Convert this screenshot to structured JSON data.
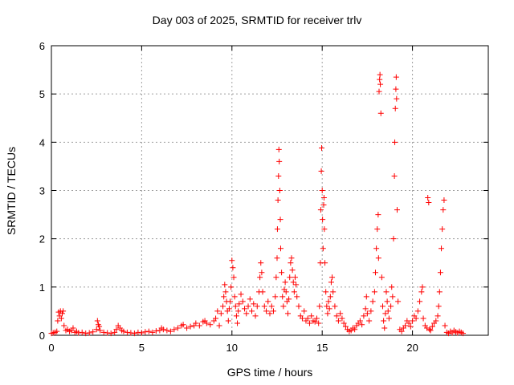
{
  "chart_data": {
    "type": "scatter",
    "title": "Day 003 of 2025, SRMTID for receiver trlv",
    "xlabel": "GPS time / hours",
    "ylabel": "SRMTID / TECUs",
    "xlim": [
      0,
      24.2
    ],
    "ylim": [
      0,
      6
    ],
    "xticks": [
      0,
      5,
      10,
      15,
      20
    ],
    "yticks": [
      0,
      1,
      2,
      3,
      4,
      5,
      6
    ],
    "grid": true,
    "marker": "+",
    "series": [
      {
        "name": "SRMTID",
        "color": "#ff0000",
        "points": [
          [
            0.0,
            0.04
          ],
          [
            0.1,
            0.05
          ],
          [
            0.2,
            0.06
          ],
          [
            0.3,
            0.08
          ],
          [
            0.35,
            0.3
          ],
          [
            0.4,
            0.48
          ],
          [
            0.45,
            0.4
          ],
          [
            0.5,
            0.5
          ],
          [
            0.55,
            0.35
          ],
          [
            0.6,
            0.45
          ],
          [
            0.65,
            0.5
          ],
          [
            0.7,
            0.2
          ],
          [
            0.8,
            0.1
          ],
          [
            0.9,
            0.12
          ],
          [
            1.0,
            0.08
          ],
          [
            1.1,
            0.1
          ],
          [
            1.2,
            0.15
          ],
          [
            1.3,
            0.06
          ],
          [
            1.4,
            0.08
          ],
          [
            1.5,
            0.05
          ],
          [
            1.7,
            0.06
          ],
          [
            1.9,
            0.04
          ],
          [
            2.1,
            0.05
          ],
          [
            2.3,
            0.07
          ],
          [
            2.5,
            0.12
          ],
          [
            2.55,
            0.3
          ],
          [
            2.6,
            0.22
          ],
          [
            2.65,
            0.18
          ],
          [
            2.7,
            0.1
          ],
          [
            2.9,
            0.06
          ],
          [
            3.1,
            0.05
          ],
          [
            3.3,
            0.04
          ],
          [
            3.5,
            0.06
          ],
          [
            3.6,
            0.12
          ],
          [
            3.7,
            0.2
          ],
          [
            3.8,
            0.15
          ],
          [
            3.9,
            0.1
          ],
          [
            4.0,
            0.08
          ],
          [
            4.2,
            0.06
          ],
          [
            4.4,
            0.05
          ],
          [
            4.6,
            0.04
          ],
          [
            4.8,
            0.06
          ],
          [
            5.0,
            0.05
          ],
          [
            5.2,
            0.07
          ],
          [
            5.4,
            0.08
          ],
          [
            5.6,
            0.06
          ],
          [
            5.8,
            0.09
          ],
          [
            6.0,
            0.1
          ],
          [
            6.1,
            0.15
          ],
          [
            6.2,
            0.12
          ],
          [
            6.4,
            0.1
          ],
          [
            6.6,
            0.08
          ],
          [
            6.8,
            0.12
          ],
          [
            7.0,
            0.15
          ],
          [
            7.2,
            0.2
          ],
          [
            7.3,
            0.22
          ],
          [
            7.5,
            0.15
          ],
          [
            7.7,
            0.18
          ],
          [
            7.9,
            0.2
          ],
          [
            8.0,
            0.25
          ],
          [
            8.2,
            0.2
          ],
          [
            8.4,
            0.28
          ],
          [
            8.5,
            0.3
          ],
          [
            8.6,
            0.25
          ],
          [
            8.8,
            0.22
          ],
          [
            9.0,
            0.3
          ],
          [
            9.1,
            0.35
          ],
          [
            9.2,
            0.5
          ],
          [
            9.3,
            0.2
          ],
          [
            9.4,
            0.45
          ],
          [
            9.5,
            0.6
          ],
          [
            9.55,
            0.8
          ],
          [
            9.6,
            1.05
          ],
          [
            9.65,
            0.9
          ],
          [
            9.7,
            0.7
          ],
          [
            9.75,
            0.5
          ],
          [
            9.8,
            0.3
          ],
          [
            9.85,
            0.55
          ],
          [
            9.9,
            0.7
          ],
          [
            9.95,
            1.0
          ],
          [
            10.0,
            1.55
          ],
          [
            10.05,
            1.4
          ],
          [
            10.1,
            1.2
          ],
          [
            10.15,
            0.8
          ],
          [
            10.2,
            0.6
          ],
          [
            10.25,
            0.4
          ],
          [
            10.3,
            0.25
          ],
          [
            10.35,
            0.5
          ],
          [
            10.4,
            0.65
          ],
          [
            10.5,
            0.85
          ],
          [
            10.6,
            0.7
          ],
          [
            10.7,
            0.55
          ],
          [
            10.8,
            0.45
          ],
          [
            10.9,
            0.6
          ],
          [
            11.0,
            0.75
          ],
          [
            11.1,
            0.5
          ],
          [
            11.2,
            0.65
          ],
          [
            11.3,
            0.4
          ],
          [
            11.4,
            0.6
          ],
          [
            11.5,
            0.9
          ],
          [
            11.55,
            1.2
          ],
          [
            11.6,
            1.5
          ],
          [
            11.65,
            1.3
          ],
          [
            11.7,
            0.9
          ],
          [
            11.8,
            0.6
          ],
          [
            11.9,
            0.5
          ],
          [
            12.0,
            0.7
          ],
          [
            12.1,
            0.45
          ],
          [
            12.2,
            0.6
          ],
          [
            12.3,
            0.5
          ],
          [
            12.4,
            0.8
          ],
          [
            12.45,
            1.2
          ],
          [
            12.5,
            1.6
          ],
          [
            12.52,
            2.2
          ],
          [
            12.55,
            2.8
          ],
          [
            12.58,
            3.3
          ],
          [
            12.6,
            3.85
          ],
          [
            12.62,
            3.6
          ],
          [
            12.65,
            3.0
          ],
          [
            12.68,
            2.4
          ],
          [
            12.7,
            1.8
          ],
          [
            12.75,
            1.3
          ],
          [
            12.8,
            0.8
          ],
          [
            12.85,
            0.6
          ],
          [
            12.9,
            0.95
          ],
          [
            12.95,
            1.1
          ],
          [
            13.0,
            0.9
          ],
          [
            13.05,
            0.7
          ],
          [
            13.1,
            0.45
          ],
          [
            13.15,
            0.75
          ],
          [
            13.2,
            1.2
          ],
          [
            13.25,
            1.5
          ],
          [
            13.3,
            1.6
          ],
          [
            13.35,
            1.35
          ],
          [
            13.4,
            1.1
          ],
          [
            13.45,
            0.9
          ],
          [
            13.5,
            1.2
          ],
          [
            13.55,
            1.05
          ],
          [
            13.6,
            0.8
          ],
          [
            13.7,
            0.6
          ],
          [
            13.8,
            0.4
          ],
          [
            13.9,
            0.35
          ],
          [
            14.0,
            0.5
          ],
          [
            14.1,
            0.3
          ],
          [
            14.2,
            0.35
          ],
          [
            14.3,
            0.25
          ],
          [
            14.4,
            0.4
          ],
          [
            14.5,
            0.3
          ],
          [
            14.6,
            0.28
          ],
          [
            14.7,
            0.35
          ],
          [
            14.8,
            0.25
          ],
          [
            14.85,
            0.6
          ],
          [
            14.9,
            1.5
          ],
          [
            14.92,
            2.6
          ],
          [
            14.95,
            3.4
          ],
          [
            14.97,
            3.88
          ],
          [
            15.0,
            3.0
          ],
          [
            15.02,
            2.4
          ],
          [
            15.05,
            1.8
          ],
          [
            15.08,
            2.7
          ],
          [
            15.1,
            2.85
          ],
          [
            15.12,
            2.2
          ],
          [
            15.15,
            1.5
          ],
          [
            15.2,
            0.9
          ],
          [
            15.25,
            0.6
          ],
          [
            15.3,
            0.45
          ],
          [
            15.35,
            0.7
          ],
          [
            15.4,
            0.55
          ],
          [
            15.45,
            0.8
          ],
          [
            15.5,
            1.1
          ],
          [
            15.55,
            1.2
          ],
          [
            15.6,
            0.9
          ],
          [
            15.7,
            0.6
          ],
          [
            15.8,
            0.4
          ],
          [
            15.9,
            0.3
          ],
          [
            16.0,
            0.45
          ],
          [
            16.1,
            0.35
          ],
          [
            16.2,
            0.25
          ],
          [
            16.3,
            0.18
          ],
          [
            16.4,
            0.12
          ],
          [
            16.5,
            0.08
          ],
          [
            16.6,
            0.1
          ],
          [
            16.7,
            0.15
          ],
          [
            16.8,
            0.12
          ],
          [
            16.9,
            0.2
          ],
          [
            17.0,
            0.25
          ],
          [
            17.1,
            0.3
          ],
          [
            17.2,
            0.22
          ],
          [
            17.3,
            0.4
          ],
          [
            17.4,
            0.55
          ],
          [
            17.45,
            0.8
          ],
          [
            17.5,
            0.45
          ],
          [
            17.6,
            0.3
          ],
          [
            17.7,
            0.5
          ],
          [
            17.8,
            0.7
          ],
          [
            17.9,
            0.9
          ],
          [
            17.95,
            1.3
          ],
          [
            18.0,
            1.8
          ],
          [
            18.05,
            2.2
          ],
          [
            18.1,
            2.5
          ],
          [
            18.12,
            1.6
          ],
          [
            18.15,
            5.05
          ],
          [
            18.18,
            5.3
          ],
          [
            18.2,
            5.4
          ],
          [
            18.22,
            5.2
          ],
          [
            18.25,
            4.6
          ],
          [
            18.3,
            1.2
          ],
          [
            18.35,
            0.6
          ],
          [
            18.4,
            0.3
          ],
          [
            18.45,
            0.15
          ],
          [
            18.5,
            0.45
          ],
          [
            18.55,
            0.9
          ],
          [
            18.6,
            0.7
          ],
          [
            18.65,
            0.5
          ],
          [
            18.7,
            0.35
          ],
          [
            18.8,
            0.6
          ],
          [
            18.85,
            1.0
          ],
          [
            18.9,
            0.8
          ],
          [
            18.95,
            2.0
          ],
          [
            19.0,
            3.3
          ],
          [
            19.02,
            4.0
          ],
          [
            19.05,
            4.7
          ],
          [
            19.08,
            5.1
          ],
          [
            19.1,
            5.35
          ],
          [
            19.12,
            4.9
          ],
          [
            19.15,
            2.6
          ],
          [
            19.2,
            0.7
          ],
          [
            19.3,
            0.12
          ],
          [
            19.4,
            0.08
          ],
          [
            19.5,
            0.15
          ],
          [
            19.6,
            0.2
          ],
          [
            19.7,
            0.3
          ],
          [
            19.8,
            0.25
          ],
          [
            19.9,
            0.18
          ],
          [
            20.0,
            0.3
          ],
          [
            20.1,
            0.4
          ],
          [
            20.2,
            0.35
          ],
          [
            20.3,
            0.5
          ],
          [
            20.4,
            0.7
          ],
          [
            20.5,
            0.9
          ],
          [
            20.55,
            1.0
          ],
          [
            20.6,
            0.35
          ],
          [
            20.7,
            0.2
          ],
          [
            20.8,
            0.15
          ],
          [
            20.85,
            2.85
          ],
          [
            20.9,
            2.75
          ],
          [
            20.95,
            0.12
          ],
          [
            21.0,
            0.1
          ],
          [
            21.1,
            0.18
          ],
          [
            21.2,
            0.25
          ],
          [
            21.3,
            0.3
          ],
          [
            21.4,
            0.4
          ],
          [
            21.45,
            0.6
          ],
          [
            21.5,
            0.9
          ],
          [
            21.55,
            1.3
          ],
          [
            21.6,
            1.8
          ],
          [
            21.65,
            2.2
          ],
          [
            21.7,
            2.6
          ],
          [
            21.75,
            2.8
          ],
          [
            21.8,
            0.2
          ],
          [
            21.9,
            0.06
          ],
          [
            22.0,
            0.04
          ],
          [
            22.1,
            0.08
          ],
          [
            22.2,
            0.05
          ],
          [
            22.3,
            0.1
          ],
          [
            22.4,
            0.07
          ],
          [
            22.5,
            0.05
          ],
          [
            22.6,
            0.08
          ],
          [
            22.7,
            0.06
          ],
          [
            22.8,
            0.04
          ]
        ]
      }
    ]
  }
}
